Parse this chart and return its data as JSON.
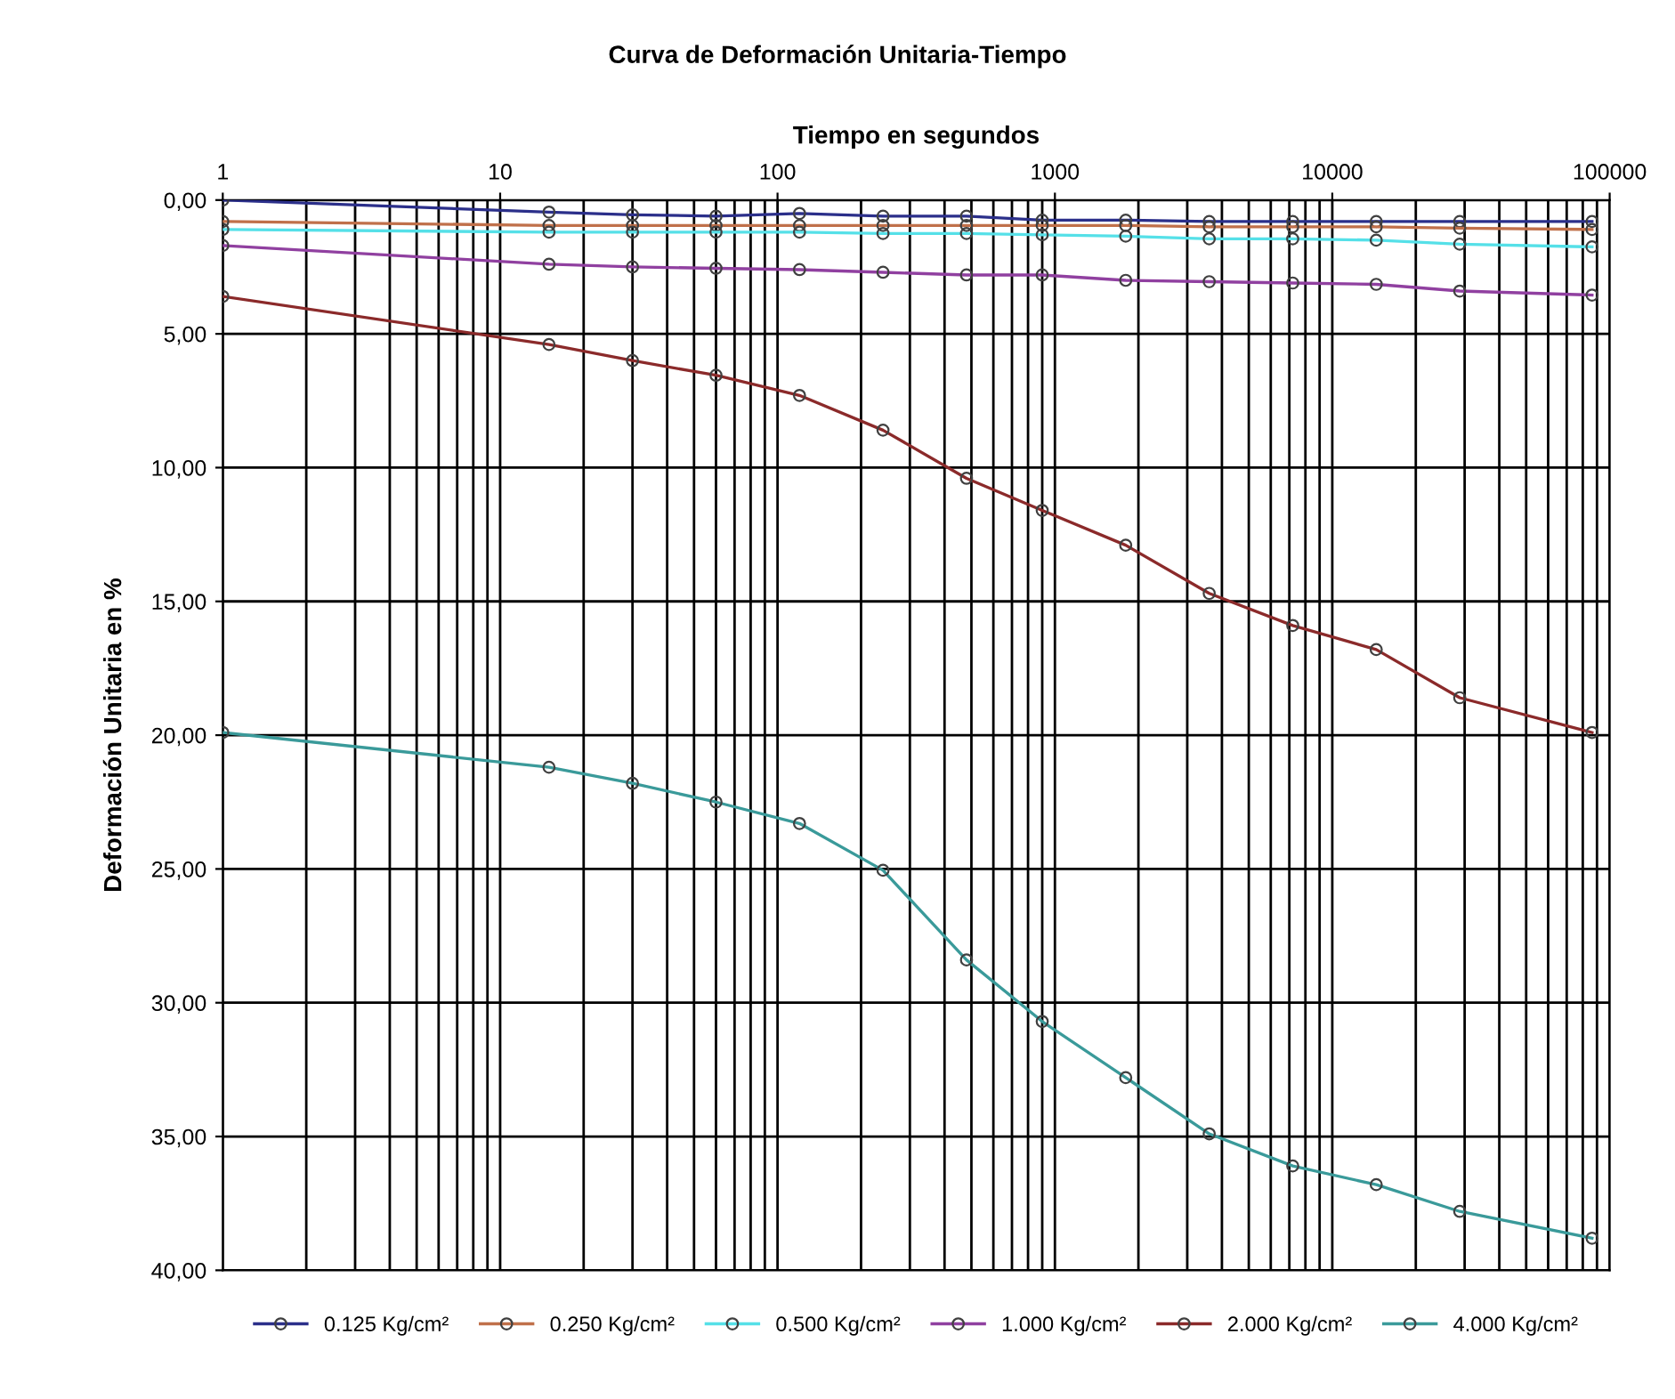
{
  "chart_data": {
    "type": "line",
    "title": "Curva de Deformación Unitaria-Tiempo",
    "xlabel": "Tiempo en segundos",
    "ylabel": "Deformación Unitaria en %",
    "x": [
      1,
      15,
      30,
      60,
      120,
      240,
      480,
      900,
      1800,
      3600,
      7200,
      14400,
      28800,
      86400
    ],
    "series": [
      {
        "name": "0.125 Kg/cm²",
        "color": "#2b2f8a",
        "values": [
          0,
          0.45,
          0.55,
          0.6,
          0.5,
          0.6,
          0.6,
          0.75,
          0.75,
          0.8,
          0.8,
          0.8,
          0.8,
          0.8
        ]
      },
      {
        "name": "0.250 Kg/cm²",
        "color": "#c0704a",
        "values": [
          0.8,
          0.95,
          0.95,
          0.95,
          0.95,
          0.95,
          0.95,
          0.95,
          0.95,
          1.0,
          1.0,
          1.0,
          1.05,
          1.1
        ]
      },
      {
        "name": "0.500 Kg/cm²",
        "color": "#55e0e8",
        "values": [
          1.1,
          1.2,
          1.2,
          1.2,
          1.2,
          1.25,
          1.25,
          1.3,
          1.35,
          1.45,
          1.45,
          1.5,
          1.65,
          1.75
        ]
      },
      {
        "name": "1.000 Kg/cm²",
        "color": "#9040a0",
        "values": [
          1.7,
          2.4,
          2.5,
          2.55,
          2.6,
          2.7,
          2.8,
          2.8,
          3.0,
          3.05,
          3.1,
          3.15,
          3.4,
          3.55
        ]
      },
      {
        "name": "2.000 Kg/cm²",
        "color": "#8b2a2a",
        "values": [
          3.6,
          5.4,
          6.0,
          6.55,
          7.3,
          8.6,
          10.4,
          11.6,
          12.9,
          14.7,
          15.9,
          16.8,
          18.6,
          19.9
        ]
      },
      {
        "name": "4.000 Kg/cm²",
        "color": "#3a9a9a",
        "values": [
          19.9,
          21.2,
          21.8,
          22.5,
          23.3,
          25.05,
          28.4,
          30.7,
          32.8,
          34.9,
          36.1,
          36.8,
          37.8,
          38.8
        ]
      }
    ],
    "log": "x",
    "xlim": [
      1,
      100000
    ],
    "xticks": [
      1,
      10,
      100,
      1000,
      10000,
      100000
    ],
    "ylim": [
      40,
      0
    ],
    "yticks": [
      {
        "value": 0,
        "label": "0,00"
      },
      {
        "value": 5,
        "label": "5,00"
      },
      {
        "value": 10,
        "label": "10,00"
      },
      {
        "value": 15,
        "label": "15,00"
      },
      {
        "value": 20,
        "label": "20,00"
      },
      {
        "value": 25,
        "label": "25,00"
      },
      {
        "value": 30,
        "label": "30,00"
      },
      {
        "value": 35,
        "label": "35,00"
      },
      {
        "value": 40,
        "label": "40,00"
      }
    ],
    "grid": true,
    "legend": "bottom",
    "marker": "circle",
    "line_style": "solid"
  }
}
